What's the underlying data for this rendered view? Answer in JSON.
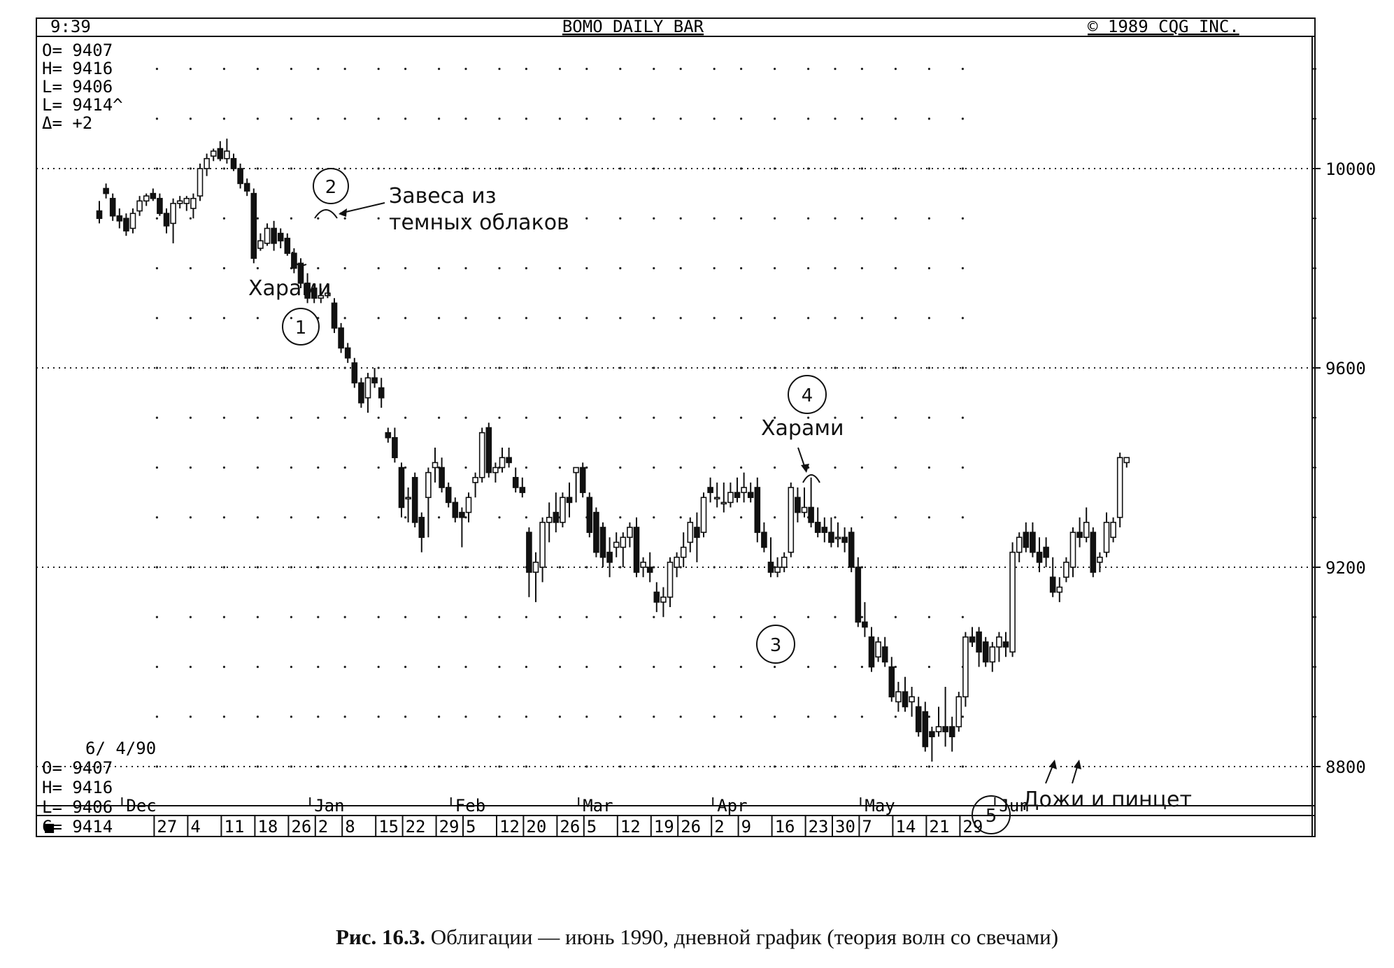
{
  "header": {
    "time": "9:39",
    "title": "BOMO DAILY BAR",
    "copyright": "©  1989 CQG INC."
  },
  "ohlc_top": [
    "O= 9407",
    "H= 9416",
    "L= 9406",
    "L= 9414^",
    "Δ=    +2"
  ],
  "ohlc_bottom": {
    "date": "6/ 4/90",
    "lines": [
      "O= 9407",
      "H= 9416",
      "L= 9406",
      "C= 9414"
    ]
  },
  "annotations": {
    "harami_1": "Харами",
    "wave_1": "1",
    "wave_2": "2",
    "dark_cloud_line1": "Завеса из",
    "dark_cloud_line2": "темных облаков",
    "wave_3": "3",
    "wave_4": "4",
    "harami_4": "Харами",
    "wave_5": "5",
    "doji_tweezers": "Дожи и пинцет"
  },
  "week_scroll_marker": "■",
  "caption": {
    "label": "Рис. 16.3.",
    "text": "Облигации — июнь 1990, дневной график (теория волн со свечами)"
  },
  "chart_data": {
    "type": "candlestick",
    "title": "BOMO DAILY BAR",
    "y_axis": {
      "ticks": [
        8800,
        9200,
        9600,
        10000
      ],
      "range": [
        8690,
        10500
      ],
      "grid": "dotted"
    },
    "months": [
      {
        "label": "Dec",
        "day": 4
      },
      {
        "label": "Jan",
        "day": 32
      },
      {
        "label": "Feb",
        "day": 53
      },
      {
        "label": "Mar",
        "day": 72
      },
      {
        "label": "Apr",
        "day": 92
      },
      {
        "label": "May",
        "day": 114
      },
      {
        "label": "Jun",
        "day": 134
      }
    ],
    "weeks": [
      {
        "label": "27",
        "day": 9
      },
      {
        "label": "4",
        "day": 14
      },
      {
        "label": "11",
        "day": 19
      },
      {
        "label": "18",
        "day": 24
      },
      {
        "label": "26",
        "day": 29
      },
      {
        "label": "2",
        "day": 33
      },
      {
        "label": "8",
        "day": 37
      },
      {
        "label": "15",
        "day": 42
      },
      {
        "label": "22",
        "day": 46
      },
      {
        "label": "29",
        "day": 51
      },
      {
        "label": "5",
        "day": 55
      },
      {
        "label": "12",
        "day": 60
      },
      {
        "label": "20",
        "day": 64
      },
      {
        "label": "26",
        "day": 69
      },
      {
        "label": "5",
        "day": 73
      },
      {
        "label": "12",
        "day": 78
      },
      {
        "label": "19",
        "day": 83
      },
      {
        "label": "26",
        "day": 87
      },
      {
        "label": "2",
        "day": 92
      },
      {
        "label": "9",
        "day": 96
      },
      {
        "label": "16",
        "day": 101
      },
      {
        "label": "23",
        "day": 106
      },
      {
        "label": "30",
        "day": 110
      },
      {
        "label": "7",
        "day": 114
      },
      {
        "label": "14",
        "day": 119
      },
      {
        "label": "21",
        "day": 124
      },
      {
        "label": "29",
        "day": 129
      }
    ],
    "candles": [
      [
        9915,
        9935,
        9890,
        9900
      ],
      [
        9960,
        9970,
        9940,
        9950
      ],
      [
        9940,
        9950,
        9895,
        9905
      ],
      [
        9905,
        9920,
        9880,
        9895
      ],
      [
        9900,
        9910,
        9865,
        9875
      ],
      [
        9880,
        9920,
        9870,
        9910
      ],
      [
        9915,
        9945,
        9905,
        9935
      ],
      [
        9935,
        9950,
        9925,
        9945
      ],
      [
        9950,
        9960,
        9935,
        9940
      ],
      [
        9940,
        9950,
        9905,
        9910
      ],
      [
        9910,
        9920,
        9870,
        9885
      ],
      [
        9890,
        9940,
        9850,
        9930
      ],
      [
        9930,
        9945,
        9920,
        9935
      ],
      [
        9930,
        9945,
        9915,
        9940
      ],
      [
        9920,
        9950,
        9900,
        9940
      ],
      [
        9945,
        10010,
        9935,
        10000
      ],
      [
        10000,
        10030,
        9985,
        10020
      ],
      [
        10025,
        10040,
        10015,
        10035
      ],
      [
        10040,
        10055,
        10015,
        10020
      ],
      [
        10020,
        10060,
        10010,
        10035
      ],
      [
        10020,
        10030,
        9995,
        10000
      ],
      [
        10000,
        10010,
        9960,
        9970
      ],
      [
        9970,
        9980,
        9945,
        9955
      ],
      [
        9950,
        9960,
        9810,
        9820
      ],
      [
        9840,
        9870,
        9835,
        9855
      ],
      [
        9850,
        9890,
        9845,
        9880
      ],
      [
        9880,
        9895,
        9835,
        9850
      ],
      [
        9870,
        9880,
        9840,
        9855
      ],
      [
        9860,
        9870,
        9825,
        9830
      ],
      [
        9830,
        9840,
        9790,
        9800
      ],
      [
        9810,
        9820,
        9760,
        9770
      ],
      [
        9770,
        9790,
        9730,
        9740
      ],
      [
        9760,
        9770,
        9730,
        9740
      ],
      [
        9740,
        9760,
        9730,
        9745
      ],
      [
        9745,
        9770,
        9740,
        9750
      ],
      [
        9730,
        9740,
        9670,
        9680
      ],
      [
        9680,
        9690,
        9630,
        9640
      ],
      [
        9640,
        9650,
        9610,
        9620
      ],
      [
        9610,
        9620,
        9560,
        9570
      ],
      [
        9570,
        9580,
        9520,
        9530
      ],
      [
        9540,
        9590,
        9510,
        9580
      ],
      [
        9580,
        9600,
        9560,
        9570
      ],
      [
        9560,
        9580,
        9520,
        9540
      ],
      [
        9470,
        9480,
        9450,
        9460
      ],
      [
        9460,
        9480,
        9410,
        9420
      ],
      [
        9400,
        9410,
        9300,
        9320
      ],
      [
        9340,
        9360,
        9290,
        9340
      ],
      [
        9380,
        9390,
        9280,
        9290
      ],
      [
        9300,
        9310,
        9230,
        9260
      ],
      [
        9340,
        9400,
        9260,
        9390
      ],
      [
        9400,
        9440,
        9370,
        9410
      ],
      [
        9400,
        9420,
        9350,
        9360
      ],
      [
        9360,
        9370,
        9320,
        9330
      ],
      [
        9330,
        9340,
        9290,
        9300
      ],
      [
        9310,
        9320,
        9240,
        9300
      ],
      [
        9310,
        9350,
        9290,
        9340
      ],
      [
        9370,
        9390,
        9340,
        9380
      ],
      [
        9380,
        9480,
        9370,
        9470
      ],
      [
        9480,
        9490,
        9380,
        9390
      ],
      [
        9390,
        9410,
        9370,
        9400
      ],
      [
        9400,
        9440,
        9390,
        9420
      ],
      [
        9420,
        9440,
        9400,
        9410
      ],
      [
        9380,
        9400,
        9350,
        9360
      ],
      [
        9360,
        9380,
        9340,
        9350
      ],
      [
        9270,
        9280,
        9140,
        9190
      ],
      [
        9190,
        9230,
        9130,
        9210
      ],
      [
        9200,
        9300,
        9170,
        9290
      ],
      [
        9290,
        9330,
        9250,
        9300
      ],
      [
        9310,
        9350,
        9270,
        9290
      ],
      [
        9290,
        9350,
        9280,
        9340
      ],
      [
        9340,
        9370,
        9300,
        9330
      ],
      [
        9390,
        9400,
        9330,
        9400
      ],
      [
        9400,
        9410,
        9340,
        9350
      ],
      [
        9340,
        9350,
        9260,
        9270
      ],
      [
        9310,
        9320,
        9220,
        9230
      ],
      [
        9280,
        9290,
        9200,
        9220
      ],
      [
        9230,
        9260,
        9180,
        9210
      ],
      [
        9240,
        9270,
        9220,
        9250
      ],
      [
        9240,
        9270,
        9200,
        9260
      ],
      [
        9260,
        9290,
        9240,
        9280
      ],
      [
        9280,
        9300,
        9180,
        9190
      ],
      [
        9200,
        9220,
        9180,
        9210
      ],
      [
        9200,
        9230,
        9170,
        9190
      ],
      [
        9150,
        9170,
        9110,
        9130
      ],
      [
        9130,
        9160,
        9100,
        9140
      ],
      [
        9140,
        9220,
        9120,
        9210
      ],
      [
        9200,
        9230,
        9180,
        9220
      ],
      [
        9220,
        9270,
        9200,
        9240
      ],
      [
        9250,
        9300,
        9230,
        9290
      ],
      [
        9280,
        9310,
        9210,
        9260
      ],
      [
        9270,
        9350,
        9260,
        9340
      ],
      [
        9360,
        9380,
        9330,
        9350
      ],
      [
        9340,
        9370,
        9320,
        9340
      ],
      [
        9330,
        9370,
        9310,
        9330
      ],
      [
        9330,
        9370,
        9320,
        9350
      ],
      [
        9350,
        9380,
        9330,
        9340
      ],
      [
        9350,
        9390,
        9330,
        9360
      ],
      [
        9350,
        9370,
        9330,
        9340
      ],
      [
        9360,
        9380,
        9250,
        9270
      ],
      [
        9270,
        9290,
        9230,
        9240
      ],
      [
        9210,
        9260,
        9180,
        9190
      ],
      [
        9190,
        9220,
        9180,
        9200
      ],
      [
        9200,
        9230,
        9190,
        9220
      ],
      [
        9230,
        9370,
        9220,
        9360
      ],
      [
        9340,
        9360,
        9290,
        9310
      ],
      [
        9310,
        9360,
        9300,
        9320
      ],
      [
        9320,
        9380,
        9280,
        9290
      ],
      [
        9290,
        9320,
        9260,
        9270
      ],
      [
        9280,
        9300,
        9250,
        9270
      ],
      [
        9270,
        9300,
        9240,
        9250
      ],
      [
        9260,
        9290,
        9240,
        9260
      ],
      [
        9260,
        9280,
        9230,
        9250
      ],
      [
        9270,
        9280,
        9190,
        9200
      ],
      [
        9200,
        9220,
        9080,
        9090
      ],
      [
        9090,
        9130,
        9060,
        9080
      ],
      [
        9060,
        9080,
        8990,
        9000
      ],
      [
        9020,
        9060,
        9010,
        9050
      ],
      [
        9040,
        9060,
        9000,
        9010
      ],
      [
        9000,
        9020,
        8930,
        8940
      ],
      [
        8930,
        8970,
        8910,
        8950
      ],
      [
        8950,
        8980,
        8910,
        8920
      ],
      [
        8930,
        8960,
        8900,
        8940
      ],
      [
        8920,
        8940,
        8860,
        8870
      ],
      [
        8910,
        8930,
        8830,
        8840
      ],
      [
        8870,
        8880,
        8810,
        8860
      ],
      [
        8870,
        8920,
        8860,
        8880
      ],
      [
        8880,
        8960,
        8840,
        8870
      ],
      [
        8880,
        8900,
        8830,
        8860
      ],
      [
        8880,
        8950,
        8870,
        8940
      ],
      [
        8940,
        9070,
        8920,
        9060
      ],
      [
        9060,
        9080,
        9040,
        9050
      ],
      [
        9070,
        9080,
        9000,
        9030
      ],
      [
        9050,
        9060,
        9000,
        9010
      ],
      [
        9010,
        9050,
        8990,
        9040
      ],
      [
        9040,
        9070,
        9010,
        9060
      ],
      [
        9050,
        9070,
        9020,
        9040
      ],
      [
        9030,
        9250,
        9020,
        9230
      ],
      [
        9230,
        9270,
        9210,
        9260
      ],
      [
        9270,
        9290,
        9230,
        9240
      ],
      [
        9270,
        9290,
        9220,
        9230
      ],
      [
        9230,
        9260,
        9190,
        9210
      ],
      [
        9240,
        9260,
        9200,
        9220
      ],
      [
        9180,
        9220,
        9140,
        9150
      ],
      [
        9150,
        9180,
        9130,
        9160
      ],
      [
        9180,
        9220,
        9170,
        9210
      ],
      [
        9200,
        9280,
        9180,
        9270
      ],
      [
        9270,
        9300,
        9240,
        9260
      ],
      [
        9260,
        9320,
        9250,
        9290
      ],
      [
        9270,
        9280,
        9180,
        9190
      ],
      [
        9210,
        9230,
        9190,
        9220
      ],
      [
        9230,
        9310,
        9220,
        9290
      ],
      [
        9260,
        9300,
        9250,
        9290
      ],
      [
        9300,
        9430,
        9280,
        9420
      ],
      [
        9410,
        9420,
        9400,
        9420
      ]
    ],
    "candle_format": [
      "open",
      "high",
      "low",
      "close"
    ]
  }
}
